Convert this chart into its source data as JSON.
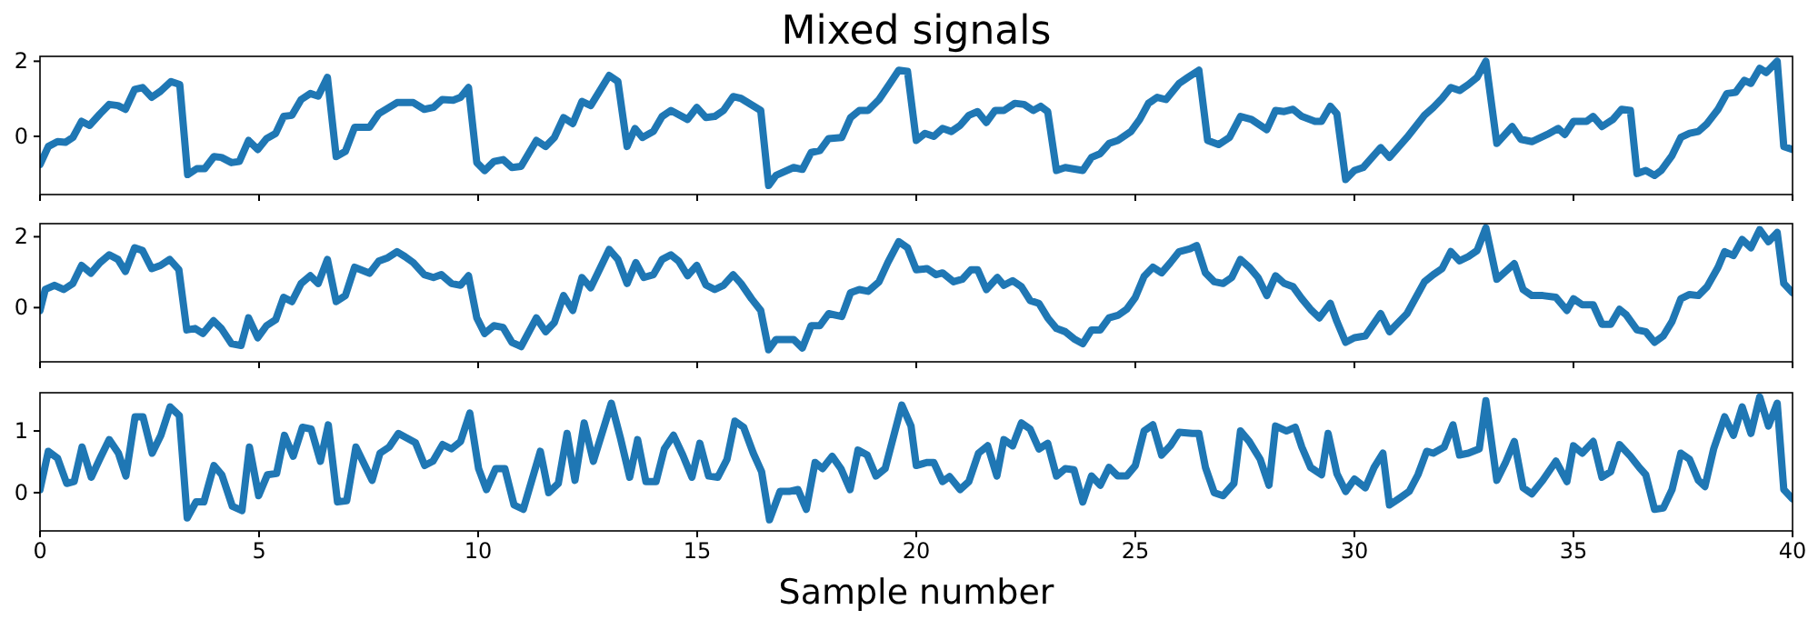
{
  "chart_data": [
    {
      "type": "line",
      "title": "Mixed signals",
      "xlim": [
        0,
        40
      ],
      "xticks": [
        0,
        5,
        10,
        15,
        20,
        25,
        30,
        35,
        40
      ],
      "ylim": [
        -1.55,
        2.13
      ],
      "yticks": [
        0,
        2
      ],
      "tick_labels": "y",
      "x": [
        0,
        0.19,
        0.4,
        0.58,
        0.75,
        0.95,
        1.13,
        1.37,
        1.58,
        1.78,
        1.95,
        2.16,
        2.34,
        2.55,
        2.75,
        2.99,
        3.19,
        3.37,
        3.58,
        3.76,
        3.97,
        4.14,
        4.37,
        4.55,
        4.76,
        4.97,
        5.17,
        5.38,
        5.56,
        5.75,
        5.96,
        6.17,
        6.35,
        6.56,
        6.76,
        6.97,
        7.18,
        7.52,
        7.73,
        8.15,
        8.52,
        8.77,
        8.98,
        9.18,
        9.43,
        9.6,
        9.78,
        9.97,
        10.15,
        10.36,
        10.57,
        10.77,
        10.98,
        11.33,
        11.54,
        11.74,
        11.95,
        12.16,
        12.37,
        12.57,
        12.99,
        13.19,
        13.4,
        13.58,
        13.75,
        14.0,
        14.2,
        14.4,
        14.78,
        14.99,
        15.2,
        15.4,
        15.6,
        15.82,
        16.0,
        16.45,
        16.63,
        16.8,
        17.2,
        17.4,
        17.6,
        17.8,
        18.0,
        18.3,
        18.5,
        18.7,
        18.9,
        19.15,
        19.4,
        19.6,
        19.8,
        20.0,
        20.2,
        20.4,
        20.6,
        20.8,
        21.0,
        21.2,
        21.4,
        21.6,
        21.8,
        22.0,
        22.25,
        22.46,
        22.67,
        22.84,
        23.0,
        23.2,
        23.4,
        23.8,
        24.0,
        24.2,
        24.4,
        24.6,
        24.9,
        25.1,
        25.3,
        25.5,
        25.7,
        26.0,
        26.2,
        26.45,
        26.65,
        26.9,
        27.15,
        27.4,
        27.65,
        28.0,
        28.2,
        28.4,
        28.6,
        28.8,
        29.1,
        29.25,
        29.45,
        29.6,
        29.8,
        30.0,
        30.2,
        30.6,
        30.8,
        31.2,
        31.6,
        31.8,
        32.0,
        32.2,
        32.4,
        32.6,
        32.8,
        33.0,
        33.25,
        33.6,
        33.8,
        34.05,
        34.4,
        34.65,
        34.8,
        35.0,
        35.3,
        35.45,
        35.65,
        35.9,
        36.1,
        36.3,
        36.45,
        36.65,
        36.85,
        37.0,
        37.25,
        37.45,
        37.65,
        37.85,
        38.05,
        38.3,
        38.5,
        38.7,
        38.9,
        39.05,
        39.25,
        39.4,
        39.65,
        39.8,
        40.0
      ],
      "series": [
        {
          "color": "#1f77b4",
          "values": [
            -0.75,
            -0.27,
            -0.14,
            -0.16,
            -0.03,
            0.4,
            0.29,
            0.6,
            0.85,
            0.82,
            0.72,
            1.25,
            1.3,
            1.04,
            1.2,
            1.46,
            1.38,
            -1.02,
            -0.86,
            -0.86,
            -0.54,
            -0.56,
            -0.7,
            -0.67,
            -0.11,
            -0.35,
            -0.06,
            0.08,
            0.53,
            0.56,
            0.98,
            1.14,
            1.07,
            1.57,
            -0.54,
            -0.4,
            0.24,
            0.24,
            0.6,
            0.9,
            0.9,
            0.72,
            0.77,
            0.98,
            0.96,
            1.04,
            1.3,
            -0.7,
            -0.91,
            -0.67,
            -0.62,
            -0.83,
            -0.8,
            -0.11,
            -0.27,
            -0.03,
            0.5,
            0.34,
            0.93,
            0.82,
            1.62,
            1.46,
            -0.27,
            0.21,
            -0.03,
            0.13,
            0.53,
            0.69,
            0.45,
            0.77,
            0.5,
            0.53,
            0.69,
            1.06,
            1.01,
            0.69,
            -1.31,
            -1.04,
            -0.83,
            -0.88,
            -0.43,
            -0.38,
            -0.06,
            -0.03,
            0.5,
            0.69,
            0.69,
            0.98,
            1.41,
            1.76,
            1.73,
            -0.11,
            0.08,
            0,
            0.21,
            0.13,
            0.29,
            0.56,
            0.66,
            0.37,
            0.69,
            0.69,
            0.88,
            0.85,
            0.69,
            0.8,
            0.66,
            -0.91,
            -0.83,
            -0.91,
            -0.56,
            -0.46,
            -0.19,
            -0.11,
            0.13,
            0.45,
            0.88,
            1.04,
            0.98,
            1.41,
            1.57,
            1.76,
            -0.11,
            -0.22,
            -0.03,
            0.53,
            0.45,
            0.18,
            0.69,
            0.66,
            0.72,
            0.53,
            0.4,
            0.4,
            0.8,
            0.6,
            -1.15,
            -0.91,
            -0.83,
            -0.3,
            -0.56,
            -0.03,
            0.56,
            0.77,
            1.01,
            1.3,
            1.22,
            1.38,
            1.57,
            2.0,
            -0.19,
            0.26,
            -0.08,
            -0.14,
            0.05,
            0.21,
            0.05,
            0.4,
            0.4,
            0.53,
            0.26,
            0.45,
            0.72,
            0.69,
            -0.99,
            -0.91,
            -1.04,
            -0.91,
            -0.51,
            -0.03,
            0.08,
            0.13,
            0.34,
            0.72,
            1.14,
            1.17,
            1.49,
            1.41,
            1.81,
            1.7,
            2.0,
            -0.27,
            -0.35
          ]
        }
      ]
    },
    {
      "type": "line",
      "xlim": [
        0,
        40
      ],
      "xticks": [
        0,
        5,
        10,
        15,
        20,
        25,
        30,
        35,
        40
      ],
      "ylim": [
        -1.53,
        2.37
      ],
      "yticks": [
        0,
        2
      ],
      "tick_labels": "y",
      "x": [
        0,
        0.12,
        0.33,
        0.54,
        0.75,
        0.95,
        1.16,
        1.37,
        1.58,
        1.78,
        1.95,
        2.16,
        2.34,
        2.55,
        2.75,
        2.96,
        3.17,
        3.35,
        3.54,
        3.72,
        3.96,
        4.14,
        4.37,
        4.59,
        4.76,
        4.97,
        5.17,
        5.38,
        5.56,
        5.75,
        5.96,
        6.17,
        6.35,
        6.56,
        6.76,
        6.97,
        7.18,
        7.52,
        7.73,
        7.94,
        8.15,
        8.33,
        8.52,
        8.77,
        8.98,
        9.16,
        9.39,
        9.6,
        9.78,
        9.97,
        10.15,
        10.36,
        10.57,
        10.77,
        10.98,
        11.33,
        11.54,
        11.74,
        11.95,
        12.16,
        12.37,
        12.57,
        12.78,
        12.99,
        13.19,
        13.4,
        13.6,
        13.78,
        14.0,
        14.2,
        14.4,
        14.58,
        14.78,
        14.99,
        15.2,
        15.4,
        15.6,
        15.82,
        16.0,
        16.24,
        16.45,
        16.63,
        16.8,
        17.2,
        17.4,
        17.6,
        17.8,
        18.0,
        18.3,
        18.5,
        18.7,
        18.9,
        19.15,
        19.35,
        19.6,
        19.8,
        20.0,
        20.25,
        20.45,
        20.6,
        20.85,
        21.05,
        21.25,
        21.4,
        21.6,
        21.85,
        22.0,
        22.2,
        22.4,
        22.6,
        22.8,
        23.0,
        23.2,
        23.4,
        23.6,
        23.8,
        24.0,
        24.2,
        24.4,
        24.6,
        24.8,
        25.0,
        25.2,
        25.4,
        25.6,
        25.8,
        26.0,
        26.25,
        26.4,
        26.6,
        26.8,
        27.0,
        27.2,
        27.4,
        27.6,
        27.8,
        28.0,
        28.2,
        28.4,
        28.6,
        28.8,
        29.0,
        29.2,
        29.45,
        29.6,
        29.8,
        30.0,
        30.25,
        30.6,
        30.8,
        31.2,
        31.6,
        31.8,
        32.0,
        32.2,
        32.4,
        32.6,
        32.8,
        33.0,
        33.25,
        33.45,
        33.65,
        33.85,
        34.05,
        34.3,
        34.6,
        34.85,
        35.0,
        35.2,
        35.45,
        35.65,
        35.85,
        36.05,
        36.2,
        36.45,
        36.65,
        36.85,
        37.05,
        37.25,
        37.45,
        37.65,
        37.85,
        38.05,
        38.3,
        38.45,
        38.65,
        38.85,
        39.05,
        39.25,
        39.45,
        39.65,
        39.8,
        40.0
      ],
      "series": [
        {
          "color": "#1f77b4",
          "values": [
            -0.08,
            0.51,
            0.63,
            0.51,
            0.68,
            1.19,
            0.97,
            1.27,
            1.49,
            1.36,
            1.02,
            1.69,
            1.61,
            1.1,
            1.19,
            1.36,
            1.07,
            -0.63,
            -0.59,
            -0.73,
            -0.37,
            -0.59,
            -1.02,
            -1.07,
            -0.29,
            -0.85,
            -0.51,
            -0.34,
            0.29,
            0.17,
            0.68,
            0.9,
            0.68,
            1.36,
            0.17,
            0.34,
            1.14,
            0.97,
            1.31,
            1.41,
            1.58,
            1.44,
            1.27,
            0.93,
            0.85,
            0.93,
            0.68,
            0.63,
            0.9,
            -0.29,
            -0.73,
            -0.51,
            -0.56,
            -0.98,
            -1.1,
            -0.29,
            -0.68,
            -0.42,
            0.34,
            -0.08,
            0.85,
            0.56,
            1.1,
            1.64,
            1.36,
            0.68,
            1.27,
            0.85,
            0.93,
            1.36,
            1.49,
            1.31,
            0.9,
            1.19,
            0.64,
            0.51,
            0.63,
            0.93,
            0.68,
            0.25,
            -0.08,
            -1.19,
            -0.9,
            -0.9,
            -1.14,
            -0.51,
            -0.51,
            -0.17,
            -0.25,
            0.42,
            0.51,
            0.46,
            0.73,
            1.27,
            1.86,
            1.69,
            1.07,
            1.1,
            0.93,
            0.98,
            0.73,
            0.8,
            1.07,
            1.07,
            0.51,
            0.85,
            0.63,
            0.76,
            0.59,
            0.2,
            0.12,
            -0.29,
            -0.59,
            -0.68,
            -0.88,
            -1.02,
            -0.63,
            -0.63,
            -0.29,
            -0.22,
            -0.05,
            0.29,
            0.88,
            1.14,
            0.98,
            1.27,
            1.58,
            1.66,
            1.75,
            0.98,
            0.73,
            0.68,
            0.85,
            1.36,
            1.14,
            0.85,
            0.34,
            0.9,
            0.68,
            0.59,
            0.25,
            -0.05,
            -0.29,
            0.12,
            -0.39,
            -0.98,
            -0.85,
            -0.8,
            -0.17,
            -0.68,
            -0.17,
            0.73,
            0.93,
            1.1,
            1.58,
            1.32,
            1.44,
            1.61,
            2.25,
            0.8,
            1.02,
            1.24,
            0.51,
            0.34,
            0.34,
            0.29,
            -0.08,
            0.25,
            0.08,
            0.08,
            -0.47,
            -0.47,
            -0.05,
            -0.2,
            -0.63,
            -0.68,
            -0.98,
            -0.8,
            -0.39,
            0.25,
            0.37,
            0.34,
            0.59,
            1.14,
            1.58,
            1.47,
            1.92,
            1.69,
            2.2,
            1.86,
            2.12,
            0.68,
            0.42
          ]
        }
      ]
    },
    {
      "type": "line",
      "xlabel": "Sample number",
      "xlim": [
        0,
        40
      ],
      "xticks": [
        0,
        5,
        10,
        15,
        20,
        25,
        30,
        35,
        40
      ],
      "ylim": [
        -0.62,
        1.62
      ],
      "yticks": [
        0,
        1
      ],
      "x": [
        0,
        0.19,
        0.4,
        0.61,
        0.78,
        0.96,
        1.17,
        1.38,
        1.58,
        1.79,
        1.96,
        2.17,
        2.35,
        2.56,
        2.76,
        2.97,
        3.18,
        3.36,
        3.56,
        3.74,
        3.97,
        4.15,
        4.39,
        4.61,
        4.78,
        4.99,
        5.19,
        5.4,
        5.58,
        5.78,
        5.99,
        6.19,
        6.4,
        6.58,
        6.79,
        7.0,
        7.21,
        7.58,
        7.76,
        7.97,
        8.18,
        8.39,
        8.57,
        8.78,
        8.97,
        9.19,
        9.39,
        9.6,
        9.81,
        10.01,
        10.19,
        10.4,
        10.61,
        10.82,
        11.03,
        11.42,
        11.61,
        11.83,
        12.03,
        12.21,
        12.42,
        12.63,
        13.04,
        13.25,
        13.46,
        13.64,
        13.83,
        14.06,
        14.25,
        14.46,
        14.67,
        14.88,
        15.06,
        15.26,
        15.47,
        15.68,
        15.86,
        16.06,
        16.28,
        16.47,
        16.65,
        16.89,
        17.1,
        17.3,
        17.49,
        17.69,
        17.86,
        18.08,
        18.28,
        18.49,
        18.67,
        18.88,
        19.08,
        19.29,
        19.47,
        19.67,
        19.88,
        20.0,
        20.25,
        20.4,
        20.6,
        20.76,
        21.0,
        21.2,
        21.42,
        21.63,
        21.84,
        22.0,
        22.2,
        22.4,
        22.6,
        22.8,
        23.0,
        23.2,
        23.4,
        23.6,
        23.8,
        24.0,
        24.2,
        24.4,
        24.6,
        24.8,
        25.0,
        25.2,
        25.4,
        25.6,
        25.8,
        26.0,
        26.3,
        26.45,
        26.6,
        26.8,
        27.0,
        27.25,
        27.4,
        27.6,
        27.85,
        28.05,
        28.2,
        28.45,
        28.65,
        28.8,
        29.0,
        29.25,
        29.4,
        29.6,
        29.8,
        30.0,
        30.25,
        30.45,
        30.65,
        30.8,
        31.05,
        31.25,
        31.45,
        31.65,
        31.8,
        32.05,
        32.25,
        32.4,
        32.6,
        32.85,
        33.0,
        33.25,
        33.45,
        33.65,
        33.85,
        34.05,
        34.3,
        34.6,
        34.85,
        35.0,
        35.2,
        35.45,
        35.65,
        35.85,
        36.05,
        36.3,
        36.5,
        36.65,
        36.85,
        37.05,
        37.25,
        37.45,
        37.65,
        37.85,
        38.0,
        38.2,
        38.45,
        38.65,
        38.85,
        39.05,
        39.25,
        39.45,
        39.65,
        39.8,
        40.0
      ],
      "series": [
        {
          "color": "#1f77b4",
          "values": [
            0.05,
            0.67,
            0.56,
            0.15,
            0.18,
            0.74,
            0.25,
            0.57,
            0.86,
            0.64,
            0.27,
            1.23,
            1.23,
            0.64,
            0.93,
            1.39,
            1.25,
            -0.41,
            -0.15,
            -0.15,
            0.44,
            0.29,
            -0.22,
            -0.29,
            0.74,
            -0.05,
            0.29,
            0.31,
            0.93,
            0.59,
            1.06,
            1.03,
            0.51,
            1.1,
            -0.15,
            -0.13,
            0.74,
            0.2,
            0.64,
            0.74,
            0.96,
            0.88,
            0.81,
            0.44,
            0.51,
            0.78,
            0.71,
            0.83,
            1.29,
            0.39,
            0.05,
            0.39,
            0.39,
            -0.2,
            -0.27,
            0.67,
            0,
            0.15,
            0.96,
            0.2,
            1.13,
            0.51,
            1.45,
            0.88,
            0.25,
            0.86,
            0.18,
            0.18,
            0.71,
            0.93,
            0.61,
            0.25,
            0.8,
            0.27,
            0.25,
            0.54,
            1.16,
            1.06,
            0.64,
            0.34,
            -0.44,
            0.02,
            0.02,
            0.05,
            -0.27,
            0.49,
            0.39,
            0.59,
            0.39,
            0.05,
            0.69,
            0.61,
            0.27,
            0.39,
            0.88,
            1.42,
            1.08,
            0.44,
            0.49,
            0.49,
            0.18,
            0.26,
            0.05,
            0.18,
            0.64,
            0.76,
            0.27,
            0.86,
            0.76,
            1.13,
            1.03,
            0.71,
            0.8,
            0.27,
            0.39,
            0.37,
            -0.15,
            0.27,
            0.12,
            0.41,
            0.27,
            0.27,
            0.44,
            1.0,
            1.1,
            0.61,
            0.76,
            0.98,
            0.96,
            0.96,
            0.41,
            0,
            -0.05,
            0.15,
            1.0,
            0.83,
            0.54,
            0.12,
            1.08,
            1.0,
            1.06,
            0.74,
            0.41,
            0.29,
            0.96,
            0.31,
            0.02,
            0.22,
            0.08,
            0.41,
            0.64,
            -0.2,
            -0.08,
            0.02,
            0.29,
            0.67,
            0.64,
            0.74,
            1.1,
            0.61,
            0.64,
            0.71,
            1.49,
            0.2,
            0.49,
            0.83,
            0.08,
            -0.02,
            0.2,
            0.51,
            0.18,
            0.76,
            0.64,
            0.83,
            0.25,
            0.34,
            0.78,
            0.59,
            0.41,
            0.29,
            -0.27,
            -0.25,
            0.05,
            0.64,
            0.54,
            0.2,
            0.1,
            0.71,
            1.23,
            0.93,
            1.39,
            0.96,
            1.55,
            1.08,
            1.45,
            0.05,
            -0.1
          ]
        }
      ]
    }
  ]
}
